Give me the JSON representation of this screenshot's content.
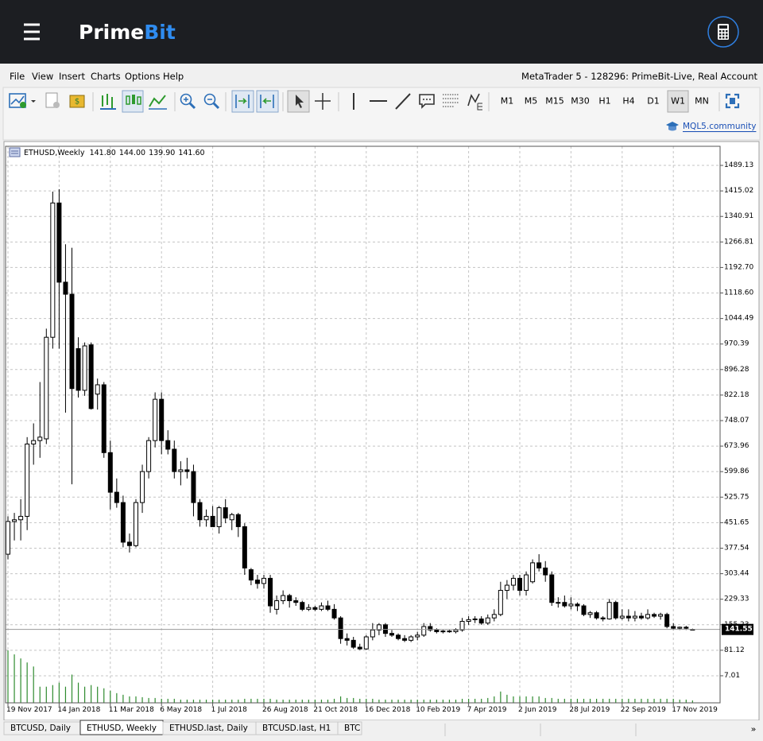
{
  "header": {
    "logo_left": "Prime",
    "logo_right": "Bit"
  },
  "menu": {
    "items": [
      "File",
      "View",
      "Insert",
      "Charts",
      "Options",
      "Help"
    ],
    "title": "MetaTrader 5 - 128296: PrimeBit-Live, Real Account"
  },
  "toolbar": {
    "timeframes": [
      "M1",
      "M5",
      "M15",
      "M30",
      "H1",
      "H4",
      "D1",
      "W1",
      "MN"
    ],
    "active_timeframe": "W1",
    "community": "MQL5.community"
  },
  "chart_data": {
    "type": "candlestick",
    "symbol": "ETHUSD,Weekly",
    "ohlc_text": [
      "141.80",
      "144.00",
      "139.90",
      "141.60"
    ],
    "categories": [
      "19 Nov 2017",
      null,
      null,
      null,
      null,
      null,
      null,
      null,
      "14 Jan 2018",
      null,
      null,
      null,
      null,
      null,
      null,
      null,
      "11 Mar 2018",
      null,
      null,
      null,
      null,
      null,
      null,
      null,
      "6 May 2018",
      null,
      null,
      null,
      null,
      null,
      null,
      null,
      "1 Jul 2018",
      null,
      null,
      null,
      null,
      null,
      null,
      null,
      "26 Aug 2018",
      null,
      null,
      null,
      null,
      null,
      null,
      null,
      "21 Oct 2018",
      null,
      null,
      null,
      null,
      null,
      null,
      null,
      "16 Dec 2018",
      null,
      null,
      null,
      null,
      null,
      null,
      null,
      "10 Feb 2019",
      null,
      null,
      null,
      null,
      null,
      null,
      null,
      "7 Apr 2019",
      null,
      null,
      null,
      null,
      null,
      null,
      null,
      "2 Jun 2019",
      null,
      null,
      null,
      null,
      null,
      null,
      null,
      "28 Jul 2019",
      null,
      null,
      null,
      null,
      null,
      null,
      null,
      "22 Sep 2019",
      null,
      null,
      null,
      null,
      null,
      null,
      null,
      "17 Nov 2019",
      null,
      null,
      null
    ],
    "open": [
      360,
      455,
      460,
      470,
      680,
      690,
      695,
      990,
      1380,
      1150,
      1115,
      957,
      836,
      968,
      825,
      852,
      655,
      540,
      510,
      395,
      385,
      510,
      600,
      690,
      810,
      690,
      665,
      600,
      605,
      600,
      510,
      460,
      470,
      440,
      495,
      460,
      475,
      440,
      315,
      285,
      275,
      290,
      200,
      225,
      240,
      225,
      220,
      200,
      205,
      200,
      210,
      200,
      175,
      115,
      110,
      90,
      85,
      120,
      140,
      155,
      130,
      125,
      115,
      110,
      120,
      125,
      150,
      140,
      135,
      137,
      135,
      140,
      165,
      170,
      172,
      160,
      175,
      185,
      255,
      270,
      290,
      255,
      280,
      335,
      320,
      300,
      220,
      220,
      210,
      215,
      210,
      185,
      190,
      175,
      172,
      220,
      175,
      180,
      175,
      180,
      175,
      185,
      180,
      185,
      150,
      145,
      148,
      141.8
    ],
    "high": [
      470,
      480,
      520,
      700,
      740,
      860,
      1015,
      1413,
      1420,
      1260,
      1250,
      990,
      975,
      975,
      870,
      860,
      690,
      580,
      530,
      420,
      520,
      620,
      700,
      830,
      830,
      720,
      690,
      630,
      640,
      620,
      520,
      490,
      500,
      500,
      520,
      480,
      480,
      450,
      320,
      300,
      300,
      300,
      240,
      255,
      245,
      235,
      225,
      215,
      210,
      220,
      225,
      215,
      180,
      130,
      120,
      100,
      125,
      160,
      160,
      160,
      140,
      130,
      125,
      125,
      135,
      160,
      160,
      145,
      140,
      140,
      145,
      175,
      180,
      180,
      180,
      185,
      200,
      280,
      285,
      300,
      300,
      310,
      345,
      360,
      340,
      310,
      235,
      240,
      235,
      220,
      215,
      195,
      195,
      180,
      230,
      225,
      200,
      200,
      195,
      190,
      200,
      190,
      190,
      190,
      160,
      150,
      152,
      144
    ],
    "low": [
      345,
      400,
      400,
      430,
      620,
      640,
      680,
      957,
      957,
      771,
      563,
      815,
      820,
      780,
      780,
      640,
      490,
      495,
      380,
      365,
      380,
      480,
      580,
      670,
      650,
      650,
      580,
      560,
      580,
      470,
      440,
      440,
      440,
      420,
      450,
      430,
      410,
      300,
      270,
      260,
      260,
      190,
      185,
      215,
      205,
      210,
      195,
      195,
      195,
      195,
      195,
      170,
      100,
      95,
      85,
      82,
      82,
      110,
      125,
      120,
      120,
      110,
      105,
      105,
      110,
      120,
      135,
      130,
      130,
      132,
      130,
      135,
      155,
      160,
      155,
      155,
      165,
      180,
      230,
      255,
      240,
      240,
      275,
      310,
      280,
      210,
      205,
      205,
      200,
      195,
      180,
      175,
      170,
      165,
      170,
      170,
      170,
      165,
      165,
      170,
      170,
      175,
      170,
      145,
      140,
      140,
      140,
      139.9
    ],
    "close": [
      455,
      460,
      470,
      680,
      690,
      700,
      990,
      1380,
      1150,
      1115,
      841,
      836,
      965,
      783,
      852,
      655,
      540,
      510,
      395,
      385,
      510,
      600,
      690,
      810,
      690,
      665,
      600,
      605,
      600,
      510,
      460,
      470,
      440,
      495,
      465,
      475,
      440,
      320,
      285,
      275,
      290,
      210,
      225,
      240,
      225,
      220,
      200,
      205,
      200,
      210,
      200,
      175,
      115,
      110,
      90,
      85,
      120,
      140,
      155,
      130,
      125,
      115,
      110,
      120,
      125,
      150,
      140,
      135,
      137,
      135,
      140,
      165,
      170,
      172,
      160,
      175,
      185,
      255,
      270,
      290,
      255,
      300,
      335,
      320,
      300,
      220,
      220,
      210,
      215,
      210,
      185,
      190,
      175,
      172,
      220,
      175,
      180,
      175,
      180,
      175,
      185,
      180,
      185,
      150,
      145,
      148,
      145,
      141.6
    ],
    "volume": [
      65,
      60,
      55,
      50,
      45,
      20,
      20,
      22,
      25,
      20,
      35,
      25,
      20,
      22,
      20,
      18,
      15,
      12,
      10,
      8,
      8,
      7,
      6,
      6,
      5,
      5,
      5,
      4,
      4,
      4,
      4,
      4,
      4,
      4,
      4,
      4,
      4,
      5,
      5,
      5,
      5,
      5,
      4,
      4,
      4,
      4,
      4,
      4,
      4,
      4,
      4,
      5,
      8,
      6,
      6,
      5,
      5,
      5,
      4,
      4,
      4,
      4,
      4,
      4,
      4,
      4,
      4,
      4,
      4,
      4,
      4,
      5,
      5,
      5,
      5,
      6,
      8,
      14,
      10,
      8,
      8,
      8,
      8,
      8,
      6,
      6,
      5,
      5,
      5,
      5,
      5,
      5,
      5,
      5,
      5,
      5,
      5,
      5,
      5,
      5,
      5,
      5,
      5,
      5,
      5,
      4,
      4,
      3
    ],
    "up_color": "#ffffff",
    "down_color": "#000000",
    "volume_color": "#2e8b2e",
    "bid": 141.55,
    "ylim": [
      -71.6,
      1544.6
    ],
    "yticks": [
      7.01,
      81.12,
      155.23,
      229.33,
      303.44,
      377.54,
      451.65,
      525.75,
      599.86,
      673.96,
      748.07,
      822.18,
      896.28,
      970.39,
      1044.49,
      {
        "value": 1118.6,
        "label": "1118.60"
      },
      {
        "value": 1192.7,
        "label": "1192.70"
      },
      1266.81,
      1340.91,
      1415.02,
      1489.13
    ],
    "grid": true
  },
  "tabs": {
    "items": [
      "BTCUSD, Daily",
      "ETHUSD, Weekly",
      "ETHUSD.last, Daily",
      "BTCUSD.last, H1",
      "BTC"
    ],
    "active": "ETHUSD, Weekly",
    "more": "»"
  }
}
